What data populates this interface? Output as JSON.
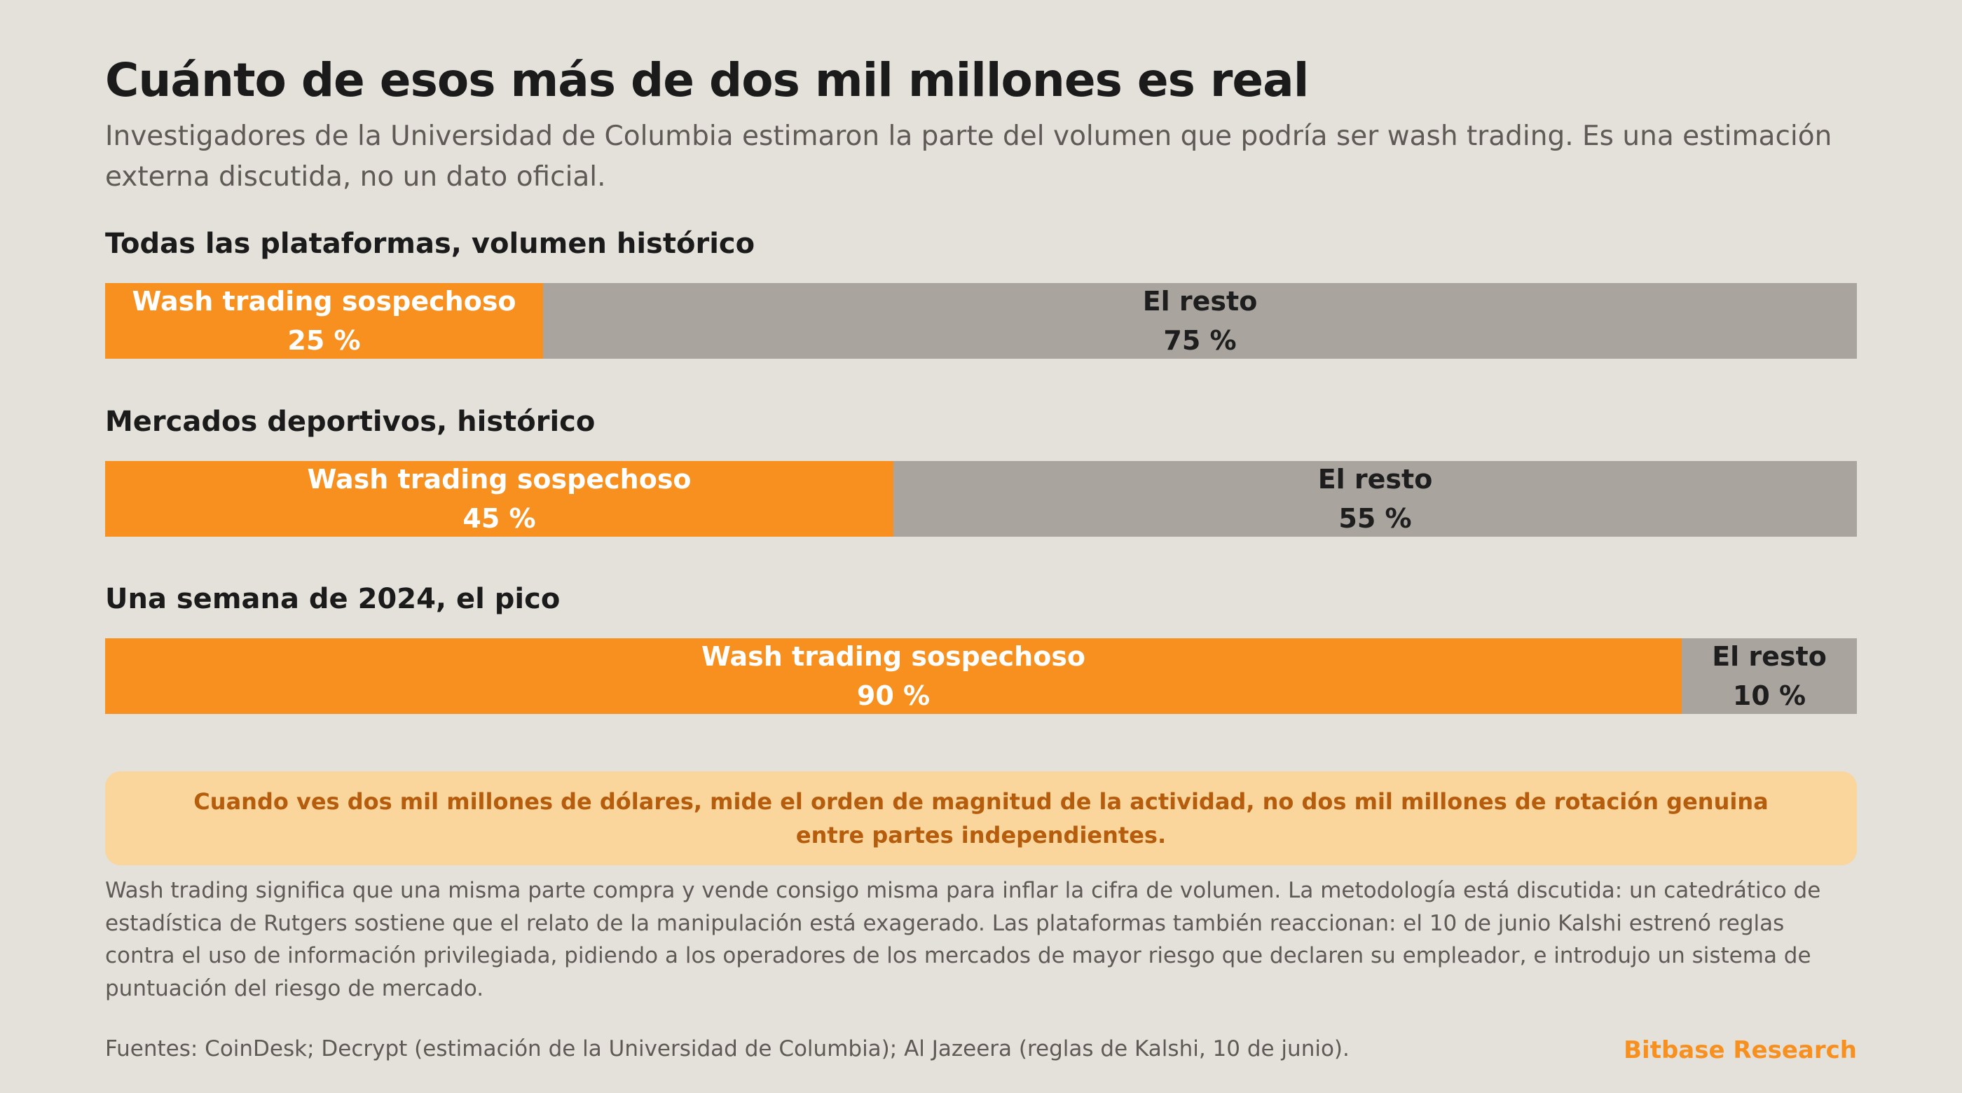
{
  "header": {
    "title": "Cuánto de esos más de dos mil millones es real",
    "subtitle": "Investigadores de la Universidad de Columbia estimaron la parte del volumen que podría ser wash trading. Es una estimación externa discutida, no un dato oficial."
  },
  "colors": {
    "wash": "#f7901e",
    "rest": "#a9a49e",
    "background": "#e4e0da",
    "callout_bg": "#fad59c",
    "callout_text": "#b55d0c"
  },
  "chart_data": [
    {
      "type": "bar",
      "title": "Todas las plataformas, volumen histórico",
      "segments": [
        {
          "name": "Wash trading sospechoso",
          "value": 25,
          "label": "25 %"
        },
        {
          "name": "El resto",
          "value": 75,
          "label": "75 %"
        }
      ]
    },
    {
      "type": "bar",
      "title": "Mercados deportivos, histórico",
      "segments": [
        {
          "name": "Wash trading sospechoso",
          "value": 45,
          "label": "45 %"
        },
        {
          "name": "El resto",
          "value": 55,
          "label": "55 %"
        }
      ]
    },
    {
      "type": "bar",
      "title": "Una semana de 2024, el pico",
      "segments": [
        {
          "name": "Wash trading sospechoso",
          "value": 90,
          "label": "90 %"
        },
        {
          "name": "El resto",
          "value": 10,
          "label": "10 %"
        }
      ]
    }
  ],
  "callout": "Cuando ves dos mil millones de dólares, mide el orden de magnitud de la actividad, no dos mil millones de rotación genuina entre partes independientes.",
  "note": "Wash trading significa que una misma parte compra y vende consigo misma para inflar la cifra de volumen. La metodología está discutida: un catedrático de estadística de Rutgers sostiene que el relato de la manipulación está exagerado. Las plataformas también reaccionan: el 10 de junio Kalshi estrenó reglas contra el uso de información privilegiada, pidiendo a los operadores de los mercados de mayor riesgo que declaren su empleador, e introdujo un sistema de puntuación del riesgo de mercado.",
  "sources": "Fuentes: CoinDesk; Decrypt (estimación de la Universidad de Columbia); Al Jazeera (reglas de Kalshi, 10 de junio).",
  "brand": "Bitbase Research"
}
